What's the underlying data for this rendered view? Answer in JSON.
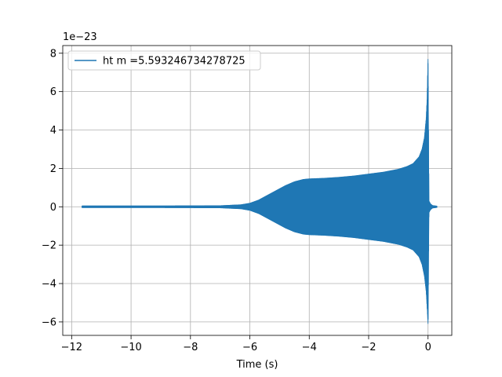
{
  "chart_data": {
    "type": "line",
    "title": "",
    "xlabel": "Time (s)",
    "ylabel": "",
    "y_offset_label": "1e−23",
    "xlim": [
      -12.3,
      0.8
    ],
    "ylim": [
      -6.7,
      8.4
    ],
    "x_ticks": [
      -12,
      -10,
      -8,
      -6,
      -4,
      -2,
      0
    ],
    "x_tick_labels": [
      "−12",
      "−10",
      "−8",
      "−6",
      "−4",
      "−2",
      "0"
    ],
    "y_ticks": [
      -6,
      -4,
      -2,
      0,
      2,
      4,
      6,
      8
    ],
    "y_tick_labels": [
      "−6",
      "−4",
      "−2",
      "0",
      "2",
      "4",
      "6",
      "8"
    ],
    "grid": true,
    "legend_position": "top-left",
    "series": [
      {
        "name": "ht m =5.593246734278725",
        "color": "#1f77b4",
        "envelope": {
          "t": [
            -11.65,
            -9.0,
            -7.0,
            -6.3,
            -6.0,
            -5.7,
            -5.4,
            -5.1,
            -4.8,
            -4.5,
            -4.2,
            -4.0,
            -3.5,
            -3.0,
            -2.5,
            -2.0,
            -1.5,
            -1.0,
            -0.7,
            -0.5,
            -0.3,
            -0.2,
            -0.12,
            -0.06,
            -0.03,
            0.0,
            0.03,
            0.08,
            0.15,
            0.3
          ],
          "upper": [
            0.04,
            0.04,
            0.05,
            0.1,
            0.18,
            0.35,
            0.6,
            0.85,
            1.1,
            1.3,
            1.42,
            1.45,
            1.48,
            1.53,
            1.6,
            1.7,
            1.8,
            1.95,
            2.1,
            2.25,
            2.6,
            3.0,
            3.6,
            4.6,
            5.6,
            7.7,
            0.3,
            0.15,
            0.06,
            0.03
          ],
          "lower": [
            -0.04,
            -0.04,
            -0.05,
            -0.1,
            -0.18,
            -0.35,
            -0.6,
            -0.85,
            -1.1,
            -1.3,
            -1.42,
            -1.45,
            -1.48,
            -1.53,
            -1.6,
            -1.7,
            -1.8,
            -1.95,
            -2.1,
            -2.25,
            -2.6,
            -3.0,
            -3.6,
            -4.4,
            -5.2,
            -6.1,
            -0.3,
            -0.15,
            -0.06,
            -0.03
          ]
        }
      }
    ]
  }
}
